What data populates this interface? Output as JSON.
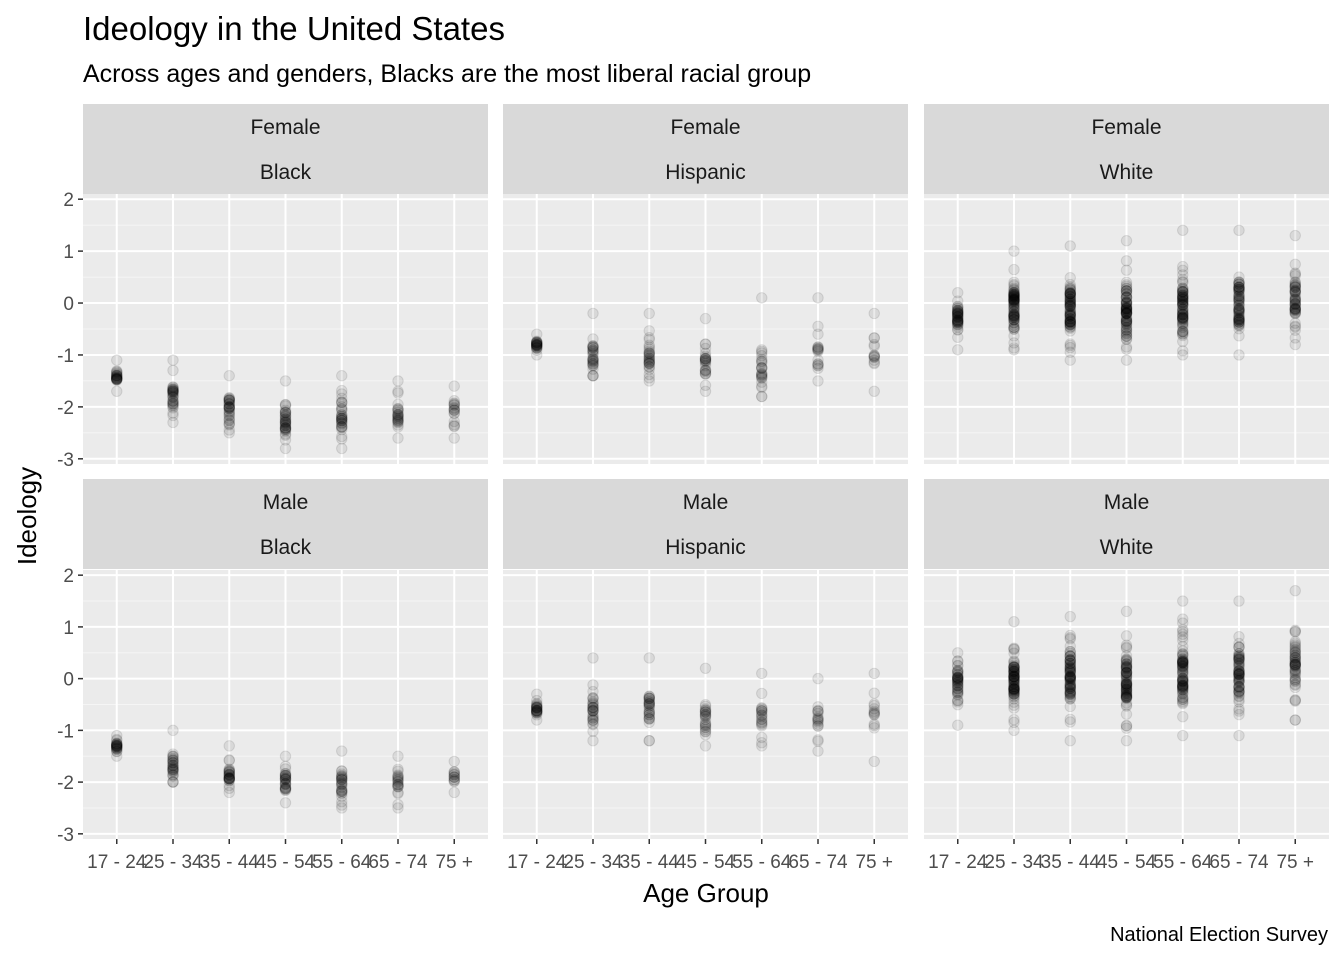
{
  "title": "Ideology in the United States",
  "subtitle": "Across ages and genders, Blacks are the most liberal racial group",
  "xlabel": "Age Group",
  "ylabel": "Ideology",
  "caption": "National Election Survey",
  "colors": {
    "panel_bg": "#ebebeb",
    "strip_bg": "#d9d9d9",
    "grid_major": "#ffffff",
    "grid_minor": "#f5f5f5",
    "point": "#000000"
  },
  "chart_data": {
    "type": "scatter",
    "facet_rows": [
      "Female",
      "Male"
    ],
    "facet_cols": [
      "Black",
      "Hispanic",
      "White"
    ],
    "categories": [
      "17 - 24",
      "25 - 34",
      "35 - 44",
      "45 - 54",
      "55 - 64",
      "65 - 74",
      "75 +"
    ],
    "ylim": [
      -3,
      2
    ],
    "yticks": [
      2,
      1,
      0,
      -1,
      -2,
      -3
    ],
    "grid": true,
    "point_alpha": 0.08,
    "panels": [
      {
        "gender": "Female",
        "race": "Black",
        "groups": [
          {
            "category": "17 - 24",
            "min": -1.7,
            "max": -1.1,
            "center": -1.4,
            "n": 12
          },
          {
            "category": "25 - 34",
            "min": -2.3,
            "max": -1.1,
            "center": -1.8,
            "n": 16
          },
          {
            "category": "35 - 44",
            "min": -2.5,
            "max": -1.4,
            "center": -2.0,
            "n": 16
          },
          {
            "category": "45 - 54",
            "min": -2.8,
            "max": -1.5,
            "center": -2.25,
            "n": 18
          },
          {
            "category": "55 - 64",
            "min": -2.8,
            "max": -1.4,
            "center": -2.2,
            "n": 16
          },
          {
            "category": "65 - 74",
            "min": -2.6,
            "max": -1.5,
            "center": -2.1,
            "n": 12
          },
          {
            "category": "75 +",
            "min": -2.6,
            "max": -1.6,
            "center": -2.05,
            "n": 8
          }
        ]
      },
      {
        "gender": "Female",
        "race": "Hispanic",
        "groups": [
          {
            "category": "17 - 24",
            "min": -1.0,
            "max": -0.6,
            "center": -0.8,
            "n": 12
          },
          {
            "category": "25 - 34",
            "min": -1.4,
            "max": -0.2,
            "center": -1.0,
            "n": 14
          },
          {
            "category": "35 - 44",
            "min": -1.5,
            "max": -0.2,
            "center": -1.0,
            "n": 14
          },
          {
            "category": "45 - 54",
            "min": -1.7,
            "max": -0.3,
            "center": -1.2,
            "n": 12
          },
          {
            "category": "55 - 64",
            "min": -1.8,
            "max": 0.1,
            "center": -1.2,
            "n": 12
          },
          {
            "category": "65 - 74",
            "min": -1.5,
            "max": 0.1,
            "center": -1.0,
            "n": 8
          },
          {
            "category": "75 +",
            "min": -1.7,
            "max": -0.2,
            "center": -1.0,
            "n": 6
          }
        ]
      },
      {
        "gender": "Female",
        "race": "White",
        "groups": [
          {
            "category": "17 - 24",
            "min": -0.9,
            "max": 0.2,
            "center": -0.25,
            "n": 22
          },
          {
            "category": "25 - 34",
            "min": -0.9,
            "max": 1.0,
            "center": -0.1,
            "n": 40
          },
          {
            "category": "35 - 44",
            "min": -1.1,
            "max": 1.1,
            "center": -0.1,
            "n": 40
          },
          {
            "category": "45 - 54",
            "min": -1.1,
            "max": 1.2,
            "center": -0.1,
            "n": 40
          },
          {
            "category": "55 - 64",
            "min": -1.0,
            "max": 1.4,
            "center": -0.05,
            "n": 40
          },
          {
            "category": "65 - 74",
            "min": -1.0,
            "max": 1.4,
            "center": -0.05,
            "n": 34
          },
          {
            "category": "75 +",
            "min": -0.8,
            "max": 1.3,
            "center": 0.1,
            "n": 26
          }
        ]
      },
      {
        "gender": "Male",
        "race": "Black",
        "groups": [
          {
            "category": "17 - 24",
            "min": -1.5,
            "max": -1.1,
            "center": -1.3,
            "n": 12
          },
          {
            "category": "25 - 34",
            "min": -2.0,
            "max": -1.0,
            "center": -1.65,
            "n": 14
          },
          {
            "category": "35 - 44",
            "min": -2.2,
            "max": -1.3,
            "center": -1.85,
            "n": 14
          },
          {
            "category": "45 - 54",
            "min": -2.4,
            "max": -1.5,
            "center": -2.0,
            "n": 14
          },
          {
            "category": "55 - 64",
            "min": -2.5,
            "max": -1.4,
            "center": -2.05,
            "n": 14
          },
          {
            "category": "65 - 74",
            "min": -2.5,
            "max": -1.5,
            "center": -2.0,
            "n": 10
          },
          {
            "category": "75 +",
            "min": -2.2,
            "max": -1.6,
            "center": -1.9,
            "n": 6
          }
        ]
      },
      {
        "gender": "Male",
        "race": "Hispanic",
        "groups": [
          {
            "category": "17 - 24",
            "min": -0.8,
            "max": -0.3,
            "center": -0.6,
            "n": 12
          },
          {
            "category": "25 - 34",
            "min": -1.2,
            "max": 0.4,
            "center": -0.6,
            "n": 14
          },
          {
            "category": "35 - 44",
            "min": -1.2,
            "max": 0.4,
            "center": -0.6,
            "n": 14
          },
          {
            "category": "45 - 54",
            "min": -1.3,
            "max": 0.2,
            "center": -0.8,
            "n": 12
          },
          {
            "category": "55 - 64",
            "min": -1.3,
            "max": 0.1,
            "center": -0.75,
            "n": 10
          },
          {
            "category": "65 - 74",
            "min": -1.4,
            "max": 0.0,
            "center": -0.8,
            "n": 8
          },
          {
            "category": "75 +",
            "min": -1.6,
            "max": 0.1,
            "center": -0.7,
            "n": 6
          }
        ]
      },
      {
        "gender": "Male",
        "race": "White",
        "groups": [
          {
            "category": "17 - 24",
            "min": -0.9,
            "max": 0.5,
            "center": -0.05,
            "n": 22
          },
          {
            "category": "25 - 34",
            "min": -1.0,
            "max": 1.1,
            "center": 0.0,
            "n": 40
          },
          {
            "category": "35 - 44",
            "min": -1.2,
            "max": 1.2,
            "center": 0.0,
            "n": 40
          },
          {
            "category": "45 - 54",
            "min": -1.2,
            "max": 1.3,
            "center": 0.0,
            "n": 40
          },
          {
            "category": "55 - 64",
            "min": -1.1,
            "max": 1.5,
            "center": 0.1,
            "n": 40
          },
          {
            "category": "65 - 74",
            "min": -1.1,
            "max": 1.5,
            "center": 0.1,
            "n": 34
          },
          {
            "category": "75 +",
            "min": -0.8,
            "max": 1.7,
            "center": 0.2,
            "n": 26
          }
        ]
      }
    ]
  }
}
